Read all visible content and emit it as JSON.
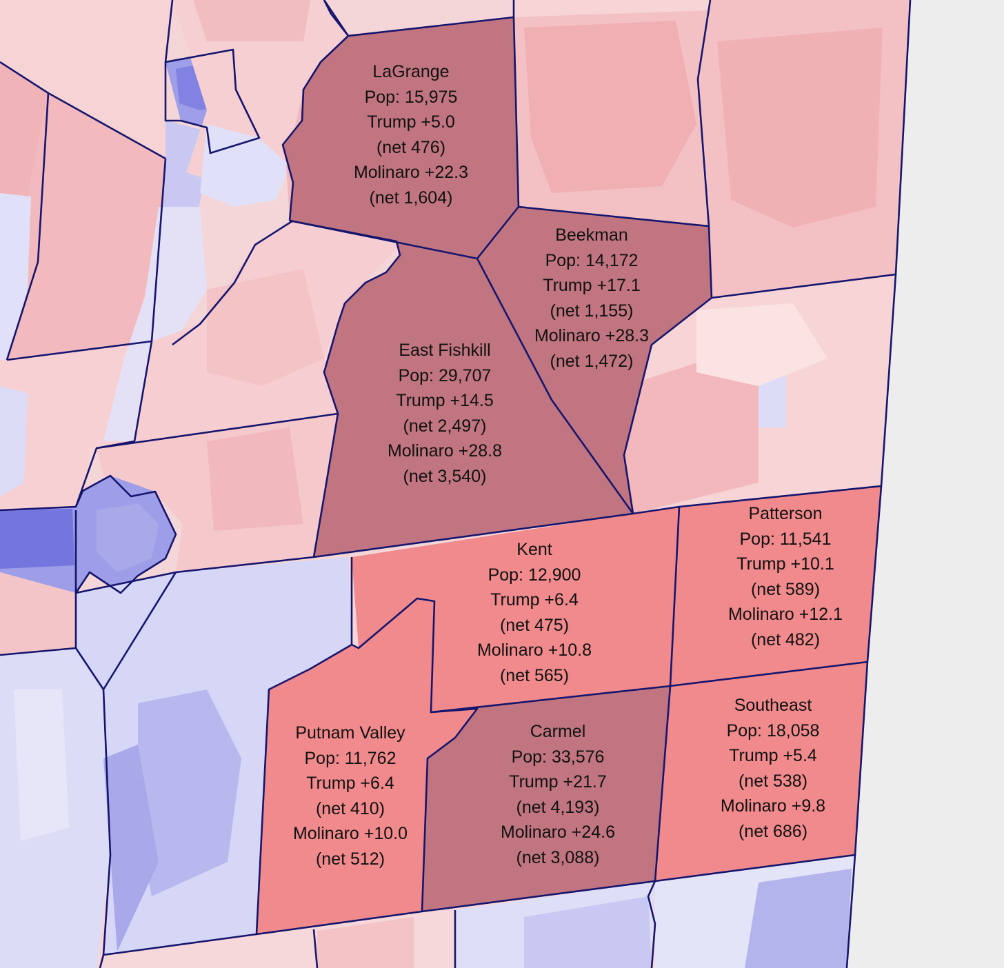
{
  "colors": {
    "background": "#ededed",
    "outline": "#15156e",
    "highlight_dark": "#c07580",
    "highlight_light": "#f08a8c",
    "rep_light": "#f6cccf",
    "rep_medium": "#f0adb1",
    "dem_light": "#d8d8f6",
    "dem_medium": "#b2b2ee",
    "dem_dark": "#7777e0"
  },
  "towns": [
    {
      "name": "LaGrange",
      "pop": "Pop: 15,975",
      "trump": "Trump +5.0",
      "trump_net": "(net 476)",
      "molinaro": "Molinaro +22.3",
      "molinaro_net": "(net 1,604)",
      "shade": "dark"
    },
    {
      "name": "Beekman",
      "pop": "Pop: 14,172",
      "trump": "Trump +17.1",
      "trump_net": "(net 1,155)",
      "molinaro": "Molinaro +28.3",
      "molinaro_net": "(net 1,472)",
      "shade": "dark"
    },
    {
      "name": "East Fishkill",
      "pop": "Pop: 29,707",
      "trump": "Trump +14.5",
      "trump_net": "(net 2,497)",
      "molinaro": "Molinaro +28.8",
      "molinaro_net": "(net 3,540)",
      "shade": "dark"
    },
    {
      "name": "Kent",
      "pop": "Pop: 12,900",
      "trump": "Trump +6.4",
      "trump_net": "(net 475)",
      "molinaro": "Molinaro +10.8",
      "molinaro_net": "(net 565)",
      "shade": "light"
    },
    {
      "name": "Patterson",
      "pop": "Pop: 11,541",
      "trump": "Trump +10.1",
      "trump_net": "(net 589)",
      "molinaro": "Molinaro +12.1",
      "molinaro_net": "(net 482)",
      "shade": "light"
    },
    {
      "name": "Putnam Valley",
      "pop": "Pop: 11,762",
      "trump": "Trump +6.4",
      "trump_net": "(net 410)",
      "molinaro": "Molinaro +10.0",
      "molinaro_net": "(net 512)",
      "shade": "light"
    },
    {
      "name": "Carmel",
      "pop": "Pop: 33,576",
      "trump": "Trump +21.7",
      "trump_net": "(net 4,193)",
      "molinaro": "Molinaro +24.6",
      "molinaro_net": "(net 3,088)",
      "shade": "dark"
    },
    {
      "name": "Southeast",
      "pop": "Pop: 18,058",
      "trump": "Trump +5.4",
      "trump_net": "(net 538)",
      "molinaro": "Molinaro +9.8",
      "molinaro_net": "(net 686)",
      "shade": "light"
    }
  ]
}
